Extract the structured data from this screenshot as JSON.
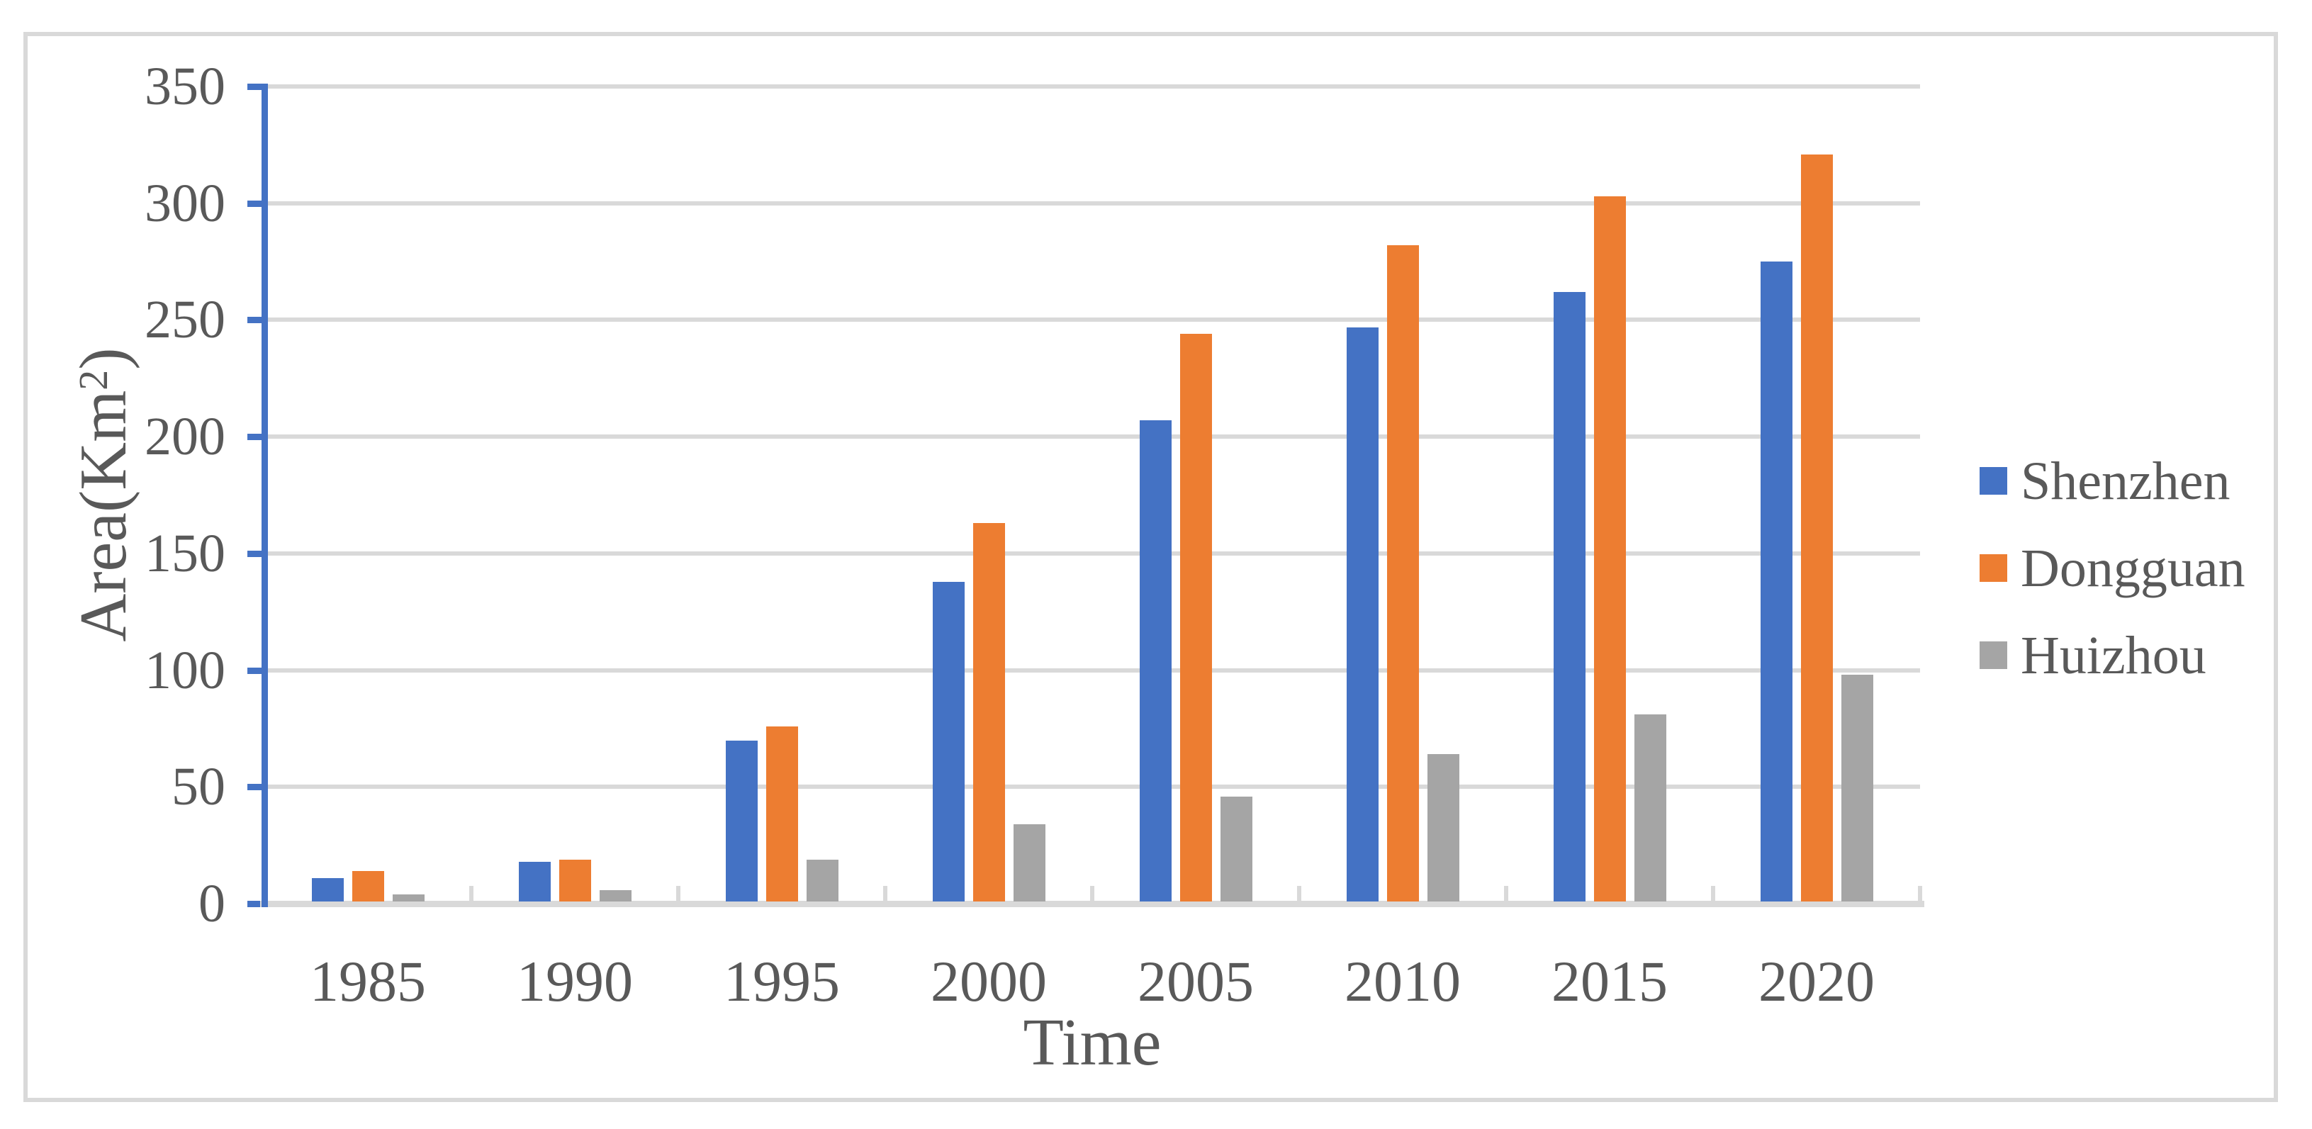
{
  "figure": {
    "background": "#FFFFFF",
    "border_color": "#D9D9D9"
  },
  "chart_data": {
    "type": "bar",
    "title": "",
    "categories": [
      "1985",
      "1990",
      "1995",
      "2000",
      "2005",
      "2010",
      "2015",
      "2020"
    ],
    "series": [
      {
        "name": "Shenzhen",
        "color": "#4472C4",
        "values": [
          10,
          17,
          69,
          137,
          206,
          246,
          261,
          274
        ]
      },
      {
        "name": "Dongguan",
        "color": "#ED7D31",
        "values": [
          13,
          18,
          75,
          162,
          243,
          281,
          302,
          320
        ]
      },
      {
        "name": "Huizhou",
        "color": "#A5A5A5",
        "values": [
          3,
          5,
          18,
          33,
          45,
          63,
          80,
          97
        ]
      }
    ],
    "xlabel": "Time",
    "ylabel": "Area(Km²)",
    "ylabel_parts": {
      "base": "Area(Km",
      "superscript": "2",
      "close": ")"
    },
    "ylim": [
      0,
      350
    ],
    "ytick_interval": 50,
    "ytick_labels": [
      "350",
      "300",
      "250",
      "200",
      "150",
      "100",
      "50",
      "0"
    ],
    "grid": true,
    "legend_position": "right",
    "axis_color": "#4472C4",
    "gridline_color": "#D9D9D9",
    "text_color": "#595959"
  }
}
